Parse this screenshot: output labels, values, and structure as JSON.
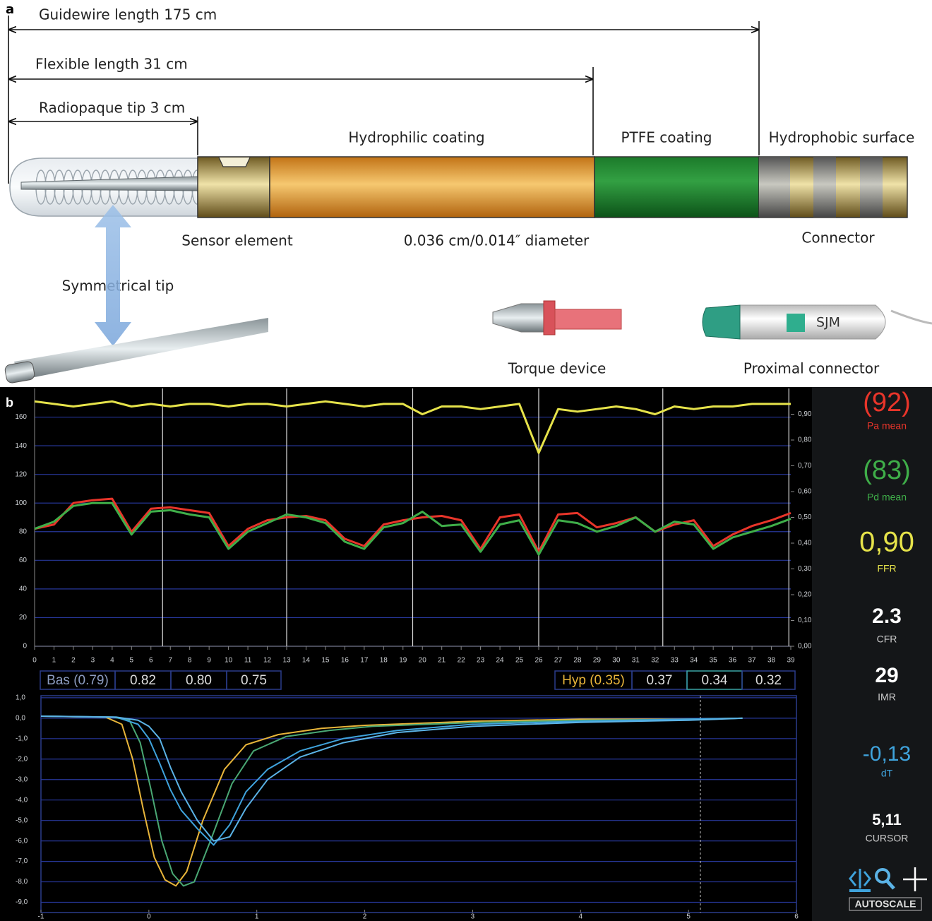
{
  "panel_a": {
    "label": "a",
    "dimensions": [
      "Guidewire length 175 cm",
      "Flexible length 31 cm",
      "Radiopaque tip 3 cm"
    ],
    "segments": [
      "Hydrophilic coating",
      "PTFE coating",
      "Hydrophobic surface"
    ],
    "parts": [
      "Sensor element",
      "0.036 cm/0.014″ diameter",
      "Connector",
      "Symmetrical tip",
      "Torque device",
      "Proximal connector"
    ],
    "brand": "SJM"
  },
  "panel_b": {
    "label": "b",
    "pressure_chart": {
      "type": "line",
      "x": [
        0,
        1,
        2,
        3,
        4,
        5,
        6,
        7,
        8,
        9,
        10,
        11,
        12,
        13,
        14,
        15,
        16,
        17,
        18,
        19,
        20,
        21,
        22,
        23,
        24,
        25,
        26,
        27,
        28,
        29,
        30,
        31,
        32,
        33,
        34,
        35,
        36,
        37,
        38,
        39
      ],
      "xlim": [
        0,
        39
      ],
      "xticks": [
        0,
        1,
        2,
        3,
        4,
        5,
        6,
        7,
        8,
        9,
        10,
        11,
        12,
        13,
        14,
        15,
        16,
        17,
        18,
        19,
        20,
        21,
        22,
        23,
        24,
        25,
        26,
        27,
        28,
        29,
        30,
        31,
        32,
        33,
        34,
        35,
        36,
        37,
        38,
        39
      ],
      "ylim": [
        0,
        180
      ],
      "yticks": [
        0,
        20,
        40,
        60,
        80,
        100,
        120,
        140,
        160
      ],
      "y2lim": [
        0,
        1
      ],
      "y2ticks": [
        {
          "value": 0,
          "label": "0,00"
        },
        {
          "value": 0.1,
          "label": "0,10"
        },
        {
          "value": 0.2,
          "label": "0,20"
        },
        {
          "value": 0.3,
          "label": "0,30"
        },
        {
          "value": 0.4,
          "label": "0,40"
        },
        {
          "value": 0.5,
          "label": "0,50"
        },
        {
          "value": 0.6,
          "label": "0,60"
        },
        {
          "value": 0.7,
          "label": "0,70"
        },
        {
          "value": 0.8,
          "label": "0,80"
        },
        {
          "value": 0.9,
          "label": "0,90"
        }
      ],
      "event_lines": [
        6.6,
        13,
        19.5,
        26,
        32.4,
        38.9
      ],
      "series": [
        {
          "color": "#e8352a",
          "values": [
            82,
            85,
            100,
            102,
            103,
            80,
            96,
            97,
            95,
            93,
            70,
            82,
            88,
            90,
            91,
            88,
            75,
            70,
            85,
            88,
            90,
            91,
            88,
            68,
            90,
            92,
            66,
            92,
            93,
            83,
            86,
            90,
            80,
            85,
            88,
            70,
            78,
            84,
            88,
            93
          ]
        },
        {
          "color": "#3fae49",
          "values": [
            82,
            87,
            98,
            100,
            100,
            78,
            94,
            95,
            92,
            90,
            68,
            80,
            86,
            92,
            90,
            86,
            73,
            68,
            83,
            86,
            94,
            84,
            85,
            66,
            85,
            88,
            64,
            88,
            86,
            80,
            84,
            90,
            80,
            87,
            85,
            68,
            76,
            80,
            84,
            89
          ]
        },
        {
          "color": "#e6e34a",
          "axis": "y2",
          "values": [
            0.95,
            0.94,
            0.93,
            0.94,
            0.95,
            0.93,
            0.94,
            0.93,
            0.94,
            0.94,
            0.93,
            0.94,
            0.94,
            0.93,
            0.94,
            0.95,
            0.94,
            0.93,
            0.94,
            0.94,
            0.9,
            0.93,
            0.93,
            0.92,
            0.93,
            0.94,
            0.75,
            0.92,
            0.91,
            0.92,
            0.93,
            0.92,
            0.9,
            0.93,
            0.92,
            0.93,
            0.93,
            0.94,
            0.94,
            0.94
          ]
        }
      ]
    },
    "index_boxes": {
      "baseline": [
        "Bas (0.79)",
        "0.82",
        "0.80",
        "0.75"
      ],
      "hyperemia": [
        "Hyp (0.35)",
        "0.37",
        "0.34",
        "0.32"
      ]
    },
    "thermodilution_chart": {
      "type": "line",
      "xlim": [
        -1,
        6
      ],
      "xticks": [
        -1,
        0,
        1,
        2,
        3,
        4,
        5,
        6
      ],
      "ylim": [
        -9.5,
        1.1
      ],
      "yticks": [
        {
          "value": 1,
          "label": "1,0"
        },
        {
          "value": 0,
          "label": "0,0"
        },
        {
          "value": -1,
          "label": "-1,0"
        },
        {
          "value": -2,
          "label": "-2,0"
        },
        {
          "value": -3,
          "label": "-3,0"
        },
        {
          "value": -4,
          "label": "-4,0"
        },
        {
          "value": -5,
          "label": "-5,0"
        },
        {
          "value": -6,
          "label": "-6,0"
        },
        {
          "value": -7,
          "label": "-7,0"
        },
        {
          "value": -8,
          "label": "-8,0"
        },
        {
          "value": -9,
          "label": "-9,0"
        }
      ],
      "cursor_x": 5.11,
      "series": [
        {
          "color": "#e8b53a",
          "x": [
            -1,
            -0.4,
            -0.25,
            -0.15,
            -0.05,
            0.05,
            0.15,
            0.25,
            0.35,
            0.5,
            0.7,
            0.9,
            1.2,
            1.6,
            2,
            2.5,
            3,
            4,
            5,
            5.5
          ],
          "values": [
            0.1,
            0.05,
            -0.3,
            -2,
            -4.5,
            -6.8,
            -7.9,
            -8.2,
            -7.5,
            -5,
            -2.5,
            -1.3,
            -0.8,
            -0.5,
            -0.35,
            -0.25,
            -0.15,
            -0.05,
            -0.05,
            0
          ]
        },
        {
          "color": "#4aa874",
          "x": [
            -1,
            -0.33,
            -0.18,
            -0.08,
            0.02,
            0.12,
            0.22,
            0.32,
            0.42,
            0.57,
            0.77,
            0.97,
            1.27,
            1.67,
            2.07,
            2.57,
            3.07,
            4.07,
            5.07,
            5.5
          ],
          "values": [
            0.1,
            0.05,
            -0.1,
            -1.2,
            -3.5,
            -6,
            -7.6,
            -8.2,
            -8,
            -6,
            -3.2,
            -1.6,
            -0.9,
            -0.6,
            -0.4,
            -0.3,
            -0.2,
            -0.1,
            -0.05,
            0
          ]
        },
        {
          "color": "#3fa3dc",
          "x": [
            -1,
            -0.3,
            -0.1,
            0,
            0.1,
            0.2,
            0.3,
            0.45,
            0.6,
            0.75,
            0.9,
            1.1,
            1.4,
            1.8,
            2.3,
            3,
            4,
            5,
            5.5
          ],
          "values": [
            0.1,
            0.05,
            -0.3,
            -1,
            -2.2,
            -3.5,
            -4.5,
            -5.4,
            -6.2,
            -5.2,
            -3.6,
            -2.5,
            -1.6,
            -1,
            -0.6,
            -0.3,
            -0.15,
            -0.05,
            0
          ]
        },
        {
          "color": "#5bb3e6",
          "x": [
            -1,
            -0.3,
            -0.1,
            0,
            0.1,
            0.2,
            0.3,
            0.45,
            0.6,
            0.75,
            0.9,
            1.1,
            1.4,
            1.8,
            2.3,
            3,
            4,
            5,
            5.5
          ],
          "values": [
            0.1,
            0.05,
            -0.1,
            -0.4,
            -1,
            -2.4,
            -3.6,
            -5,
            -6,
            -5.8,
            -4.4,
            -3,
            -1.9,
            -1.2,
            -0.7,
            -0.4,
            -0.2,
            -0.1,
            0
          ]
        }
      ]
    },
    "readouts": [
      {
        "value": "(92)",
        "label": "Pa mean",
        "color": "#e8352a"
      },
      {
        "value": "(83)",
        "label": "Pd mean",
        "color": "#3fae49"
      },
      {
        "value": "0,90",
        "label": "FFR",
        "color": "#e6e34a"
      },
      {
        "value": "2.3",
        "label": "CFR",
        "color": "#ffffff"
      },
      {
        "value": "29",
        "label": "IMR",
        "color": "#ffffff"
      },
      {
        "value": "-0,13",
        "label": "dT",
        "color": "#3fa3dc"
      },
      {
        "value": "5,11",
        "label": "CURSOR",
        "color": "#ffffff"
      }
    ],
    "autoscale": "AUTOSCALE"
  }
}
